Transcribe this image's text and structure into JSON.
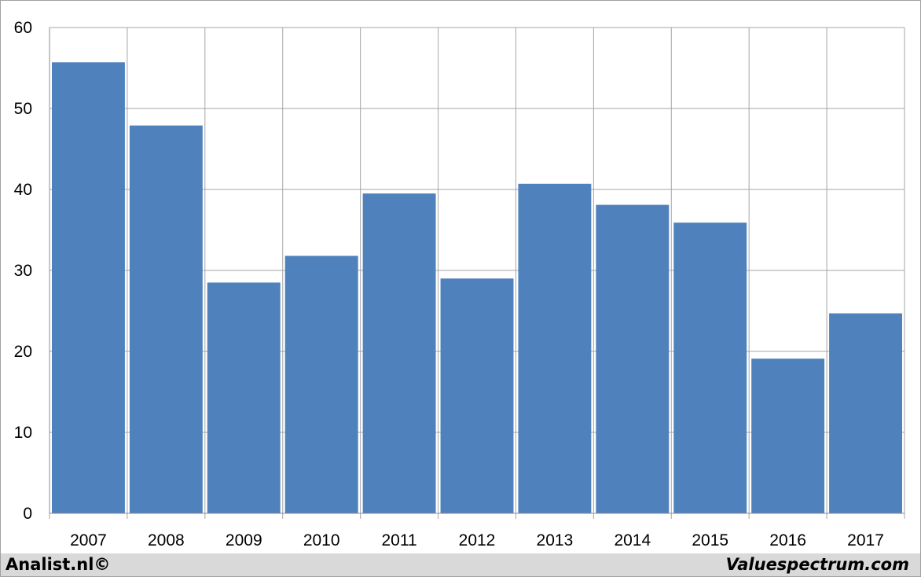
{
  "chart_data": {
    "type": "bar",
    "categories": [
      "2007",
      "2008",
      "2009",
      "2010",
      "2011",
      "2012",
      "2013",
      "2014",
      "2015",
      "2016",
      "2017"
    ],
    "values": [
      55.7,
      47.9,
      28.5,
      31.8,
      39.5,
      29.0,
      40.7,
      38.1,
      35.9,
      19.1,
      24.7
    ],
    "ylim": [
      0,
      60
    ],
    "yticks": [
      "0",
      "10",
      "20",
      "30",
      "40",
      "50",
      "60"
    ],
    "title": "",
    "xlabel": "",
    "ylabel": "",
    "grid": true,
    "bar_color": "#4f81bd",
    "grid_color": "#a6a6a6"
  },
  "footer": {
    "left_text": "Analist.nl©",
    "right_text": "Valuespectrum.com"
  }
}
